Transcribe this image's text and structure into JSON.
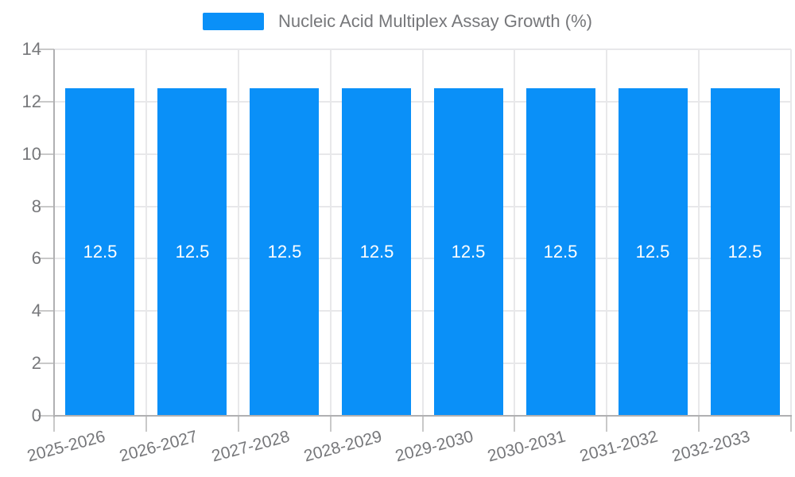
{
  "chart_data": {
    "type": "bar",
    "title": "Nucleic Acid Multiplex Assay Growth (%)",
    "categories": [
      "2025-2026",
      "2026-2027",
      "2027-2028",
      "2028-2029",
      "2029-2030",
      "2030-2031",
      "2031-2032",
      "2032-2033"
    ],
    "series": [
      {
        "name": "Nucleic Acid Multiplex Assay Growth (%)",
        "values": [
          12.5,
          12.5,
          12.5,
          12.5,
          12.5,
          12.5,
          12.5,
          12.5
        ],
        "value_labels": [
          "12.5",
          "12.5",
          "12.5",
          "12.5",
          "12.5",
          "12.5",
          "12.5",
          "12.5"
        ]
      }
    ],
    "xlabel": "",
    "ylabel": "",
    "ylim": [
      0,
      14
    ],
    "ytick_step": 2,
    "ytick_labels": [
      "0",
      "2",
      "4",
      "6",
      "8",
      "10",
      "12",
      "14"
    ],
    "grid": true,
    "legend_position": "top",
    "x_label_rotation_deg": -15,
    "colors": {
      "bar": "#0a90f8",
      "value_label": "#ffffff",
      "axis_text": "#76777a",
      "axis_line": "#b0b0b2",
      "tick": "#c9c9c9",
      "grid": "#e8e8ea",
      "background": "#ffffff"
    }
  }
}
